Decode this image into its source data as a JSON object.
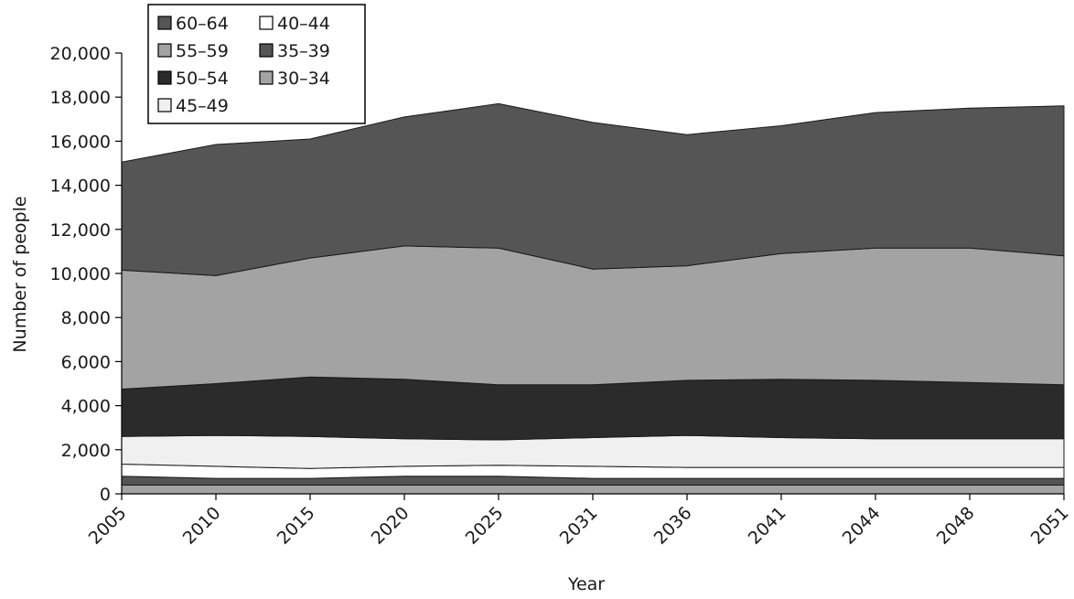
{
  "chart_data": {
    "type": "area",
    "stacked": true,
    "title": "",
    "xlabel": "Year",
    "ylabel": "Number of people",
    "ylim": [
      0,
      20000
    ],
    "yticks": [
      0,
      2000,
      4000,
      6000,
      8000,
      10000,
      12000,
      14000,
      16000,
      18000,
      20000
    ],
    "ytick_labels": [
      "0",
      "2,000",
      "4,000",
      "6,000",
      "8,000",
      "10,000",
      "12,000",
      "14,000",
      "16,000",
      "18,000",
      "20,000"
    ],
    "grid": false,
    "legend_position": "top-left",
    "categories": [
      "2005",
      "2010",
      "2015",
      "2020",
      "2025",
      "2031",
      "2036",
      "2041",
      "2044",
      "2048",
      "2051"
    ],
    "legend": [
      {
        "name": "60–64",
        "color": "#555555"
      },
      {
        "name": "40–44",
        "color": "#ffffff"
      },
      {
        "name": "55–59",
        "color": "#a3a3a3"
      },
      {
        "name": "35–39",
        "color": "#555555"
      },
      {
        "name": "50–54",
        "color": "#2b2b2b"
      },
      {
        "name": "30–34",
        "color": "#a3a3a3"
      },
      {
        "name": "45–49",
        "color": "#f0f0f0"
      }
    ],
    "series": [
      {
        "name": "30–34",
        "color": "#a3a3a3",
        "values": [
          400,
          400,
          400,
          400,
          400,
          400,
          400,
          400,
          400,
          400,
          400
        ]
      },
      {
        "name": "35–39",
        "color": "#555555",
        "values": [
          400,
          300,
          300,
          400,
          400,
          300,
          300,
          300,
          300,
          300,
          300
        ]
      },
      {
        "name": "40–44",
        "color": "#ffffff",
        "values": [
          550,
          550,
          450,
          450,
          500,
          550,
          500,
          500,
          500,
          500,
          500
        ]
      },
      {
        "name": "45–49",
        "color": "#f0f0f0",
        "values": [
          1250,
          1400,
          1450,
          1250,
          1150,
          1300,
          1450,
          1350,
          1300,
          1300,
          1300
        ]
      },
      {
        "name": "50–54",
        "color": "#2b2b2b",
        "values": [
          2150,
          2350,
          2700,
          2700,
          2500,
          2400,
          2500,
          2650,
          2650,
          2550,
          2450
        ]
      },
      {
        "name": "55–59",
        "color": "#a3a3a3",
        "values": [
          5400,
          4900,
          5400,
          6050,
          6200,
          5250,
          5200,
          5700,
          6000,
          6100,
          5850
        ]
      },
      {
        "name": "60–64",
        "color": "#555555",
        "values": [
          4900,
          5950,
          5400,
          5850,
          6550,
          6650,
          5950,
          5800,
          6150,
          6350,
          6800
        ]
      }
    ]
  }
}
